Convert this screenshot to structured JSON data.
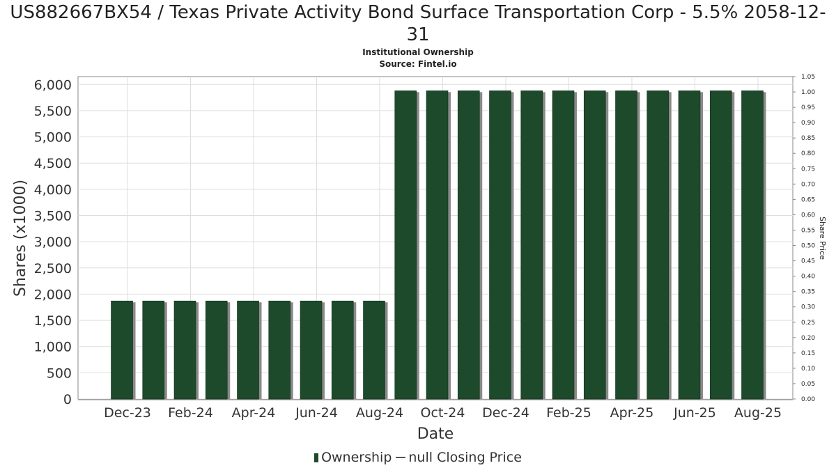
{
  "chart_data": {
    "type": "bar",
    "title": "US882667BX54 / Texas Private Activity Bond Surface Transportation Corp - 5.5% 2058-12-31",
    "subtitle": "Institutional Ownership",
    "source": "Source: Fintel.io",
    "xlabel": "Date",
    "ylabel": "Shares (x1000)",
    "y2label": "Share Price",
    "ylim": [
      0,
      6150
    ],
    "y2lim": [
      0,
      1.05
    ],
    "yticks": [
      "0",
      "500",
      "1,000",
      "1,500",
      "2,000",
      "2,500",
      "3,000",
      "3,500",
      "4,000",
      "4,500",
      "5,000",
      "5,500",
      "6,000"
    ],
    "y2ticks": [
      "0.00",
      "0.05",
      "0.10",
      "0.15",
      "0.20",
      "0.25",
      "0.30",
      "0.35",
      "0.40",
      "0.45",
      "0.50",
      "0.55",
      "0.60",
      "0.65",
      "0.70",
      "0.75",
      "0.80",
      "0.85",
      "0.90",
      "0.95",
      "1.00",
      "1.05"
    ],
    "xticks": [
      "Dec-23",
      "Feb-24",
      "Apr-24",
      "Jun-24",
      "Aug-24",
      "Oct-24",
      "Dec-24",
      "Feb-25",
      "Apr-25",
      "Jun-25",
      "Aug-25"
    ],
    "grid": true,
    "legend_position": "bottom",
    "series": [
      {
        "name": "Ownership",
        "color": "#1e4a2c",
        "values": [
          1870,
          1870,
          1870,
          1870,
          1870,
          1870,
          1870,
          1870,
          1870,
          5880,
          5880,
          5880,
          5880,
          5880,
          5880,
          5880,
          5880,
          5880,
          5880,
          5880,
          5880
        ]
      }
    ],
    "legend": {
      "ownership_label": "Ownership",
      "price_label": "null Closing Price"
    }
  }
}
